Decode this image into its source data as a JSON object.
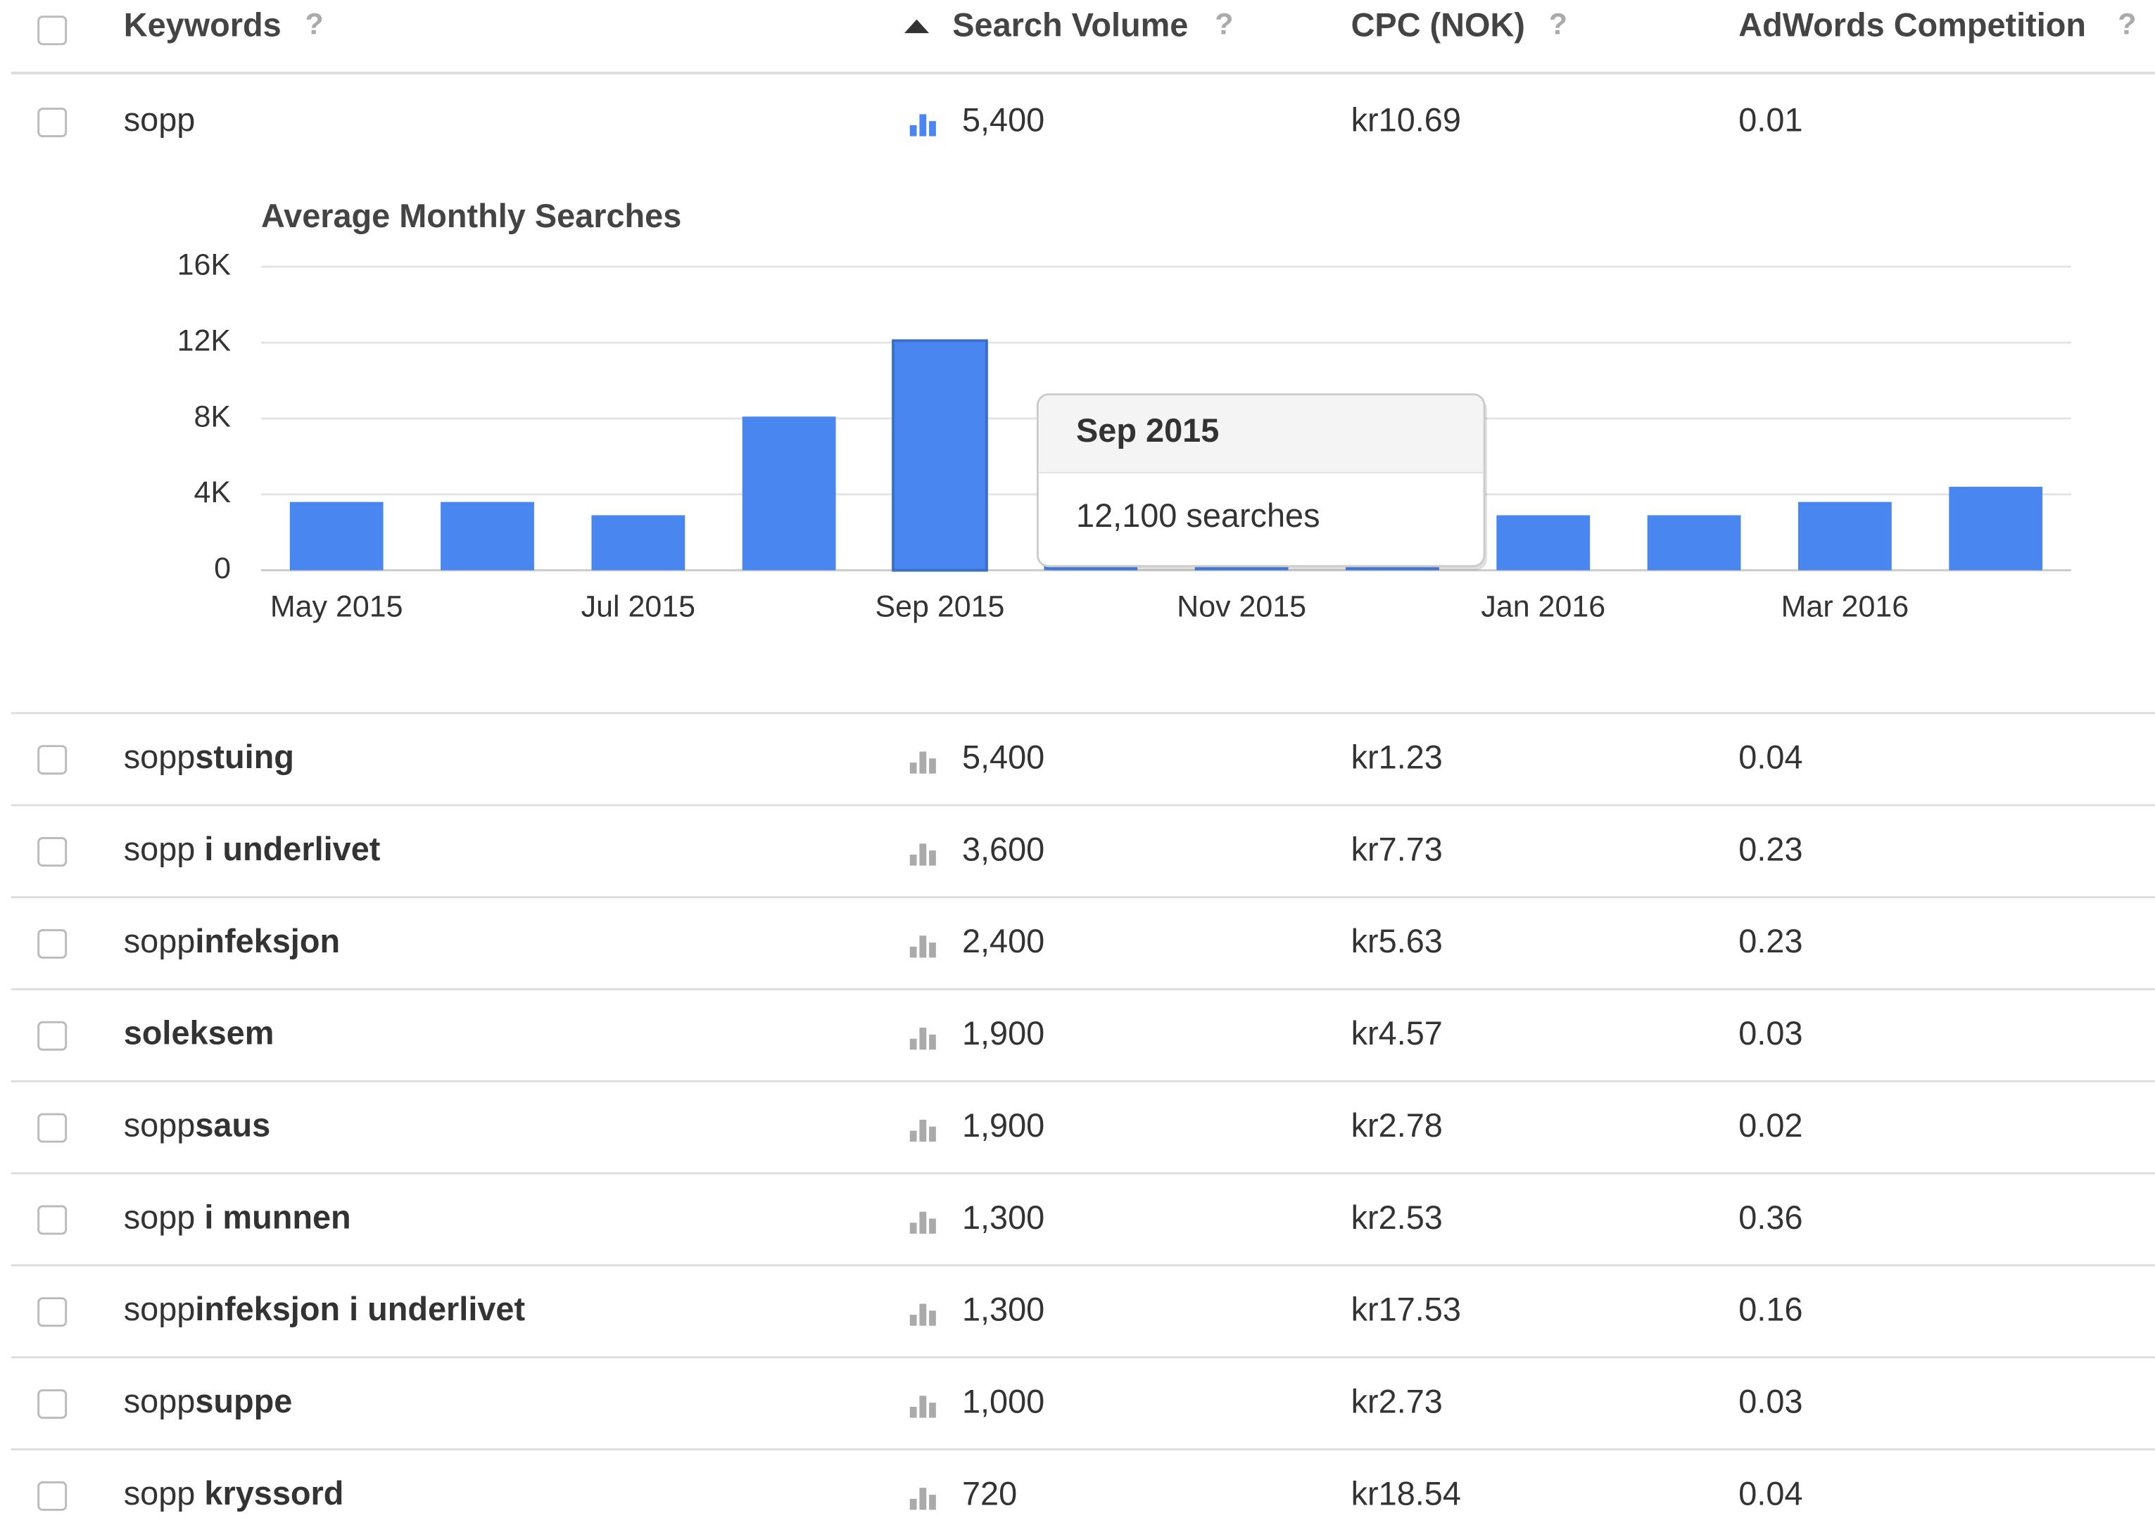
{
  "table": {
    "headers": [
      {
        "text": "Keywords",
        "help": "?"
      },
      {
        "text": "Search Volume",
        "help": "?"
      },
      {
        "text": "CPC (NOK)",
        "help": "?"
      },
      {
        "text": "AdWords Competition",
        "help": "?"
      }
    ],
    "rows": [
      {
        "keyword": {
          "normal": "sopp"
        },
        "volume": "5,400",
        "cpc": "kr10.69",
        "competition": "0.01",
        "expanded": true
      },
      {
        "keyword": {
          "normal": "sopp",
          "bold": "stuing"
        },
        "volume": "5,400",
        "cpc": "kr1.23",
        "competition": "0.04"
      },
      {
        "keyword": {
          "normal": "sopp",
          "bold": " i underlivet"
        },
        "volume": "3,600",
        "cpc": "kr7.73",
        "competition": "0.23"
      },
      {
        "keyword": {
          "normal": "sopp",
          "bold": "infeksjon"
        },
        "volume": "2,400",
        "cpc": "kr5.63",
        "competition": "0.23"
      },
      {
        "keyword": {
          "bold": "soleksem"
        },
        "volume": "1,900",
        "cpc": "kr4.57",
        "competition": "0.03"
      },
      {
        "keyword": {
          "normal": "sopp",
          "bold": "saus"
        },
        "volume": "1,900",
        "cpc": "kr2.78",
        "competition": "0.02"
      },
      {
        "keyword": {
          "normal": "sopp",
          "bold": " i munnen"
        },
        "volume": "1,300",
        "cpc": "kr2.53",
        "competition": "0.36"
      },
      {
        "keyword": {
          "normal": "sopp",
          "bold": "infeksjon i underlivet"
        },
        "volume": "1,300",
        "cpc": "kr17.53",
        "competition": "0.16"
      },
      {
        "keyword": {
          "normal": "sopp",
          "bold": "suppe"
        },
        "volume": "1,000",
        "cpc": "kr2.73",
        "competition": "0.03"
      },
      {
        "keyword": {
          "normal": "sopp",
          "bold": " kryssord"
        },
        "volume": "720",
        "cpc": "kr18.54",
        "competition": "0.04"
      }
    ]
  },
  "chart_data": {
    "type": "bar",
    "title": "Average Monthly Searches",
    "categories": [
      "May 2015",
      null,
      "Jul 2015",
      null,
      "Sep 2015",
      null,
      "Nov 2015",
      null,
      "Jan 2016",
      null,
      "Mar 2016",
      null
    ],
    "values": [
      3600,
      3600,
      2900,
      8100,
      12100,
      2900,
      2900,
      2900,
      2900,
      2900,
      3600,
      4400
    ],
    "color": "#4a86f0",
    "ylim": [
      0,
      16000
    ],
    "yticks": [
      0,
      {
        "value": 4000,
        "label": "4K"
      },
      {
        "value": 8000,
        "label": "8K"
      },
      {
        "value": 12000,
        "label": "12K"
      },
      {
        "value": 16000,
        "label": "16K"
      }
    ],
    "grid": true,
    "tooltip": {
      "title": "Sep 2015",
      "text": "12,100 searches"
    }
  }
}
